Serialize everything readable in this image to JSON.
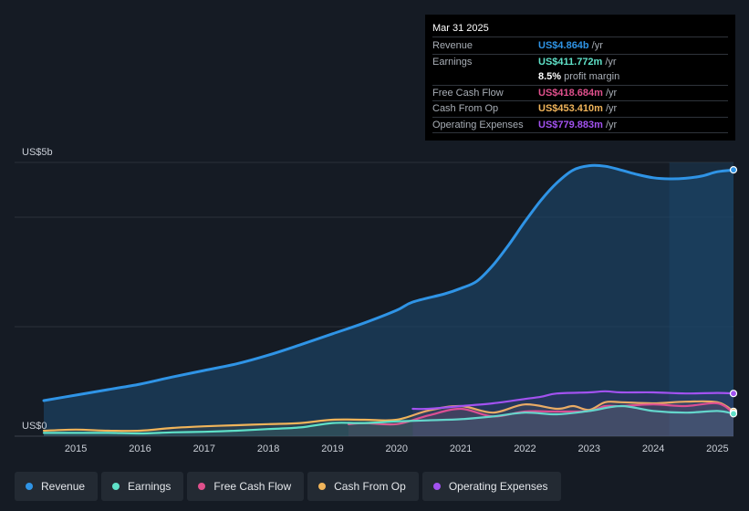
{
  "tooltip": {
    "date": "Mar 31 2025",
    "rows": [
      {
        "label": "Revenue",
        "value": "US$4.864b",
        "unit": "/yr",
        "color": "#2f94e6"
      },
      {
        "label": "Earnings",
        "value": "US$411.772m",
        "unit": "/yr",
        "color": "#5fe1c8"
      },
      {
        "label": "Free Cash Flow",
        "value": "US$418.684m",
        "unit": "/yr",
        "color": "#e0508c"
      },
      {
        "label": "Cash From Op",
        "value": "US$453.410m",
        "unit": "/yr",
        "color": "#f0b45a"
      },
      {
        "label": "Operating Expenses",
        "value": "US$779.883m",
        "unit": "/yr",
        "color": "#a252f0"
      }
    ],
    "profit_margin_value": "8.5%",
    "profit_margin_label": "profit margin"
  },
  "legend": [
    {
      "label": "Revenue",
      "color": "#2f94e6"
    },
    {
      "label": "Earnings",
      "color": "#5fe1c8"
    },
    {
      "label": "Free Cash Flow",
      "color": "#e0508c"
    },
    {
      "label": "Cash From Op",
      "color": "#f0b45a"
    },
    {
      "label": "Operating Expenses",
      "color": "#a252f0"
    }
  ],
  "chart_data": {
    "type": "line",
    "y_top_label": "US$5b",
    "y_bottom_label": "US$0",
    "ylim": [
      0,
      5
    ],
    "xlim": [
      2014.5,
      2025.25
    ],
    "x_ticks": [
      "2015",
      "2016",
      "2017",
      "2018",
      "2019",
      "2020",
      "2021",
      "2022",
      "2023",
      "2024",
      "2025"
    ],
    "x_tick_values": [
      2015,
      2016,
      2017,
      2018,
      2019,
      2020,
      2021,
      2022,
      2023,
      2024,
      2025
    ],
    "highlight_from": 2024.25,
    "series": [
      {
        "name": "Revenue",
        "color": "#2f94e6",
        "area": true,
        "x": [
          2014.5,
          2015.0,
          2015.5,
          2016.0,
          2016.5,
          2017.0,
          2017.5,
          2018.0,
          2018.5,
          2019.0,
          2019.5,
          2020.0,
          2020.25,
          2020.75,
          2021.0,
          2021.25,
          2021.5,
          2021.75,
          2022.0,
          2022.25,
          2022.5,
          2022.75,
          2023.0,
          2023.25,
          2023.5,
          2023.75,
          2024.0,
          2024.25,
          2024.5,
          2024.75,
          2025.0,
          2025.25
        ],
        "values": [
          0.65,
          0.75,
          0.85,
          0.95,
          1.08,
          1.2,
          1.32,
          1.48,
          1.67,
          1.87,
          2.07,
          2.3,
          2.45,
          2.6,
          2.7,
          2.83,
          3.12,
          3.5,
          3.92,
          4.31,
          4.63,
          4.86,
          4.94,
          4.93,
          4.86,
          4.78,
          4.72,
          4.7,
          4.71,
          4.75,
          4.83,
          4.864
        ]
      },
      {
        "name": "Earnings",
        "color": "#5fe1c8",
        "area": false,
        "x": [
          2014.5,
          2015.0,
          2015.5,
          2016.0,
          2016.5,
          2017.0,
          2017.5,
          2018.0,
          2018.5,
          2019.0,
          2019.5,
          2020.0,
          2020.5,
          2021.0,
          2021.5,
          2022.0,
          2022.5,
          2023.0,
          2023.5,
          2024.0,
          2024.5,
          2025.0,
          2025.25
        ],
        "values": [
          0.06,
          0.06,
          0.06,
          0.05,
          0.07,
          0.08,
          0.1,
          0.13,
          0.16,
          0.24,
          0.24,
          0.27,
          0.29,
          0.31,
          0.36,
          0.43,
          0.4,
          0.46,
          0.55,
          0.46,
          0.43,
          0.46,
          0.41
        ]
      },
      {
        "name": "Free Cash Flow",
        "color": "#e0508c",
        "area": false,
        "x": [
          2019.25,
          2019.5,
          2020.0,
          2020.5,
          2021.0,
          2021.5,
          2022.0,
          2022.5,
          2023.0,
          2023.25,
          2023.5,
          2024.0,
          2024.5,
          2025.0,
          2025.25
        ],
        "values": [
          0.22,
          0.24,
          0.22,
          0.38,
          0.5,
          0.36,
          0.45,
          0.45,
          0.46,
          0.55,
          0.55,
          0.58,
          0.55,
          0.6,
          0.42
        ]
      },
      {
        "name": "Cash From Op",
        "color": "#f0b45a",
        "area": false,
        "x": [
          2014.5,
          2015.0,
          2015.5,
          2016.0,
          2016.5,
          2017.0,
          2017.5,
          2018.0,
          2018.5,
          2019.0,
          2019.5,
          2020.0,
          2020.5,
          2021.0,
          2021.5,
          2022.0,
          2022.5,
          2022.75,
          2023.0,
          2023.25,
          2023.5,
          2024.0,
          2024.5,
          2025.0,
          2025.25
        ],
        "values": [
          0.1,
          0.12,
          0.1,
          0.1,
          0.15,
          0.18,
          0.2,
          0.22,
          0.24,
          0.3,
          0.3,
          0.3,
          0.47,
          0.55,
          0.43,
          0.58,
          0.5,
          0.55,
          0.48,
          0.62,
          0.62,
          0.6,
          0.63,
          0.62,
          0.453
        ]
      },
      {
        "name": "Operating Expenses",
        "color": "#a252f0",
        "area": false,
        "x": [
          2020.25,
          2020.5,
          2021.0,
          2021.5,
          2022.0,
          2022.25,
          2022.5,
          2023.0,
          2023.25,
          2023.5,
          2024.0,
          2024.5,
          2025.0,
          2025.25
        ],
        "values": [
          0.5,
          0.5,
          0.55,
          0.6,
          0.68,
          0.72,
          0.78,
          0.8,
          0.82,
          0.8,
          0.8,
          0.78,
          0.79,
          0.78
        ]
      }
    ]
  }
}
